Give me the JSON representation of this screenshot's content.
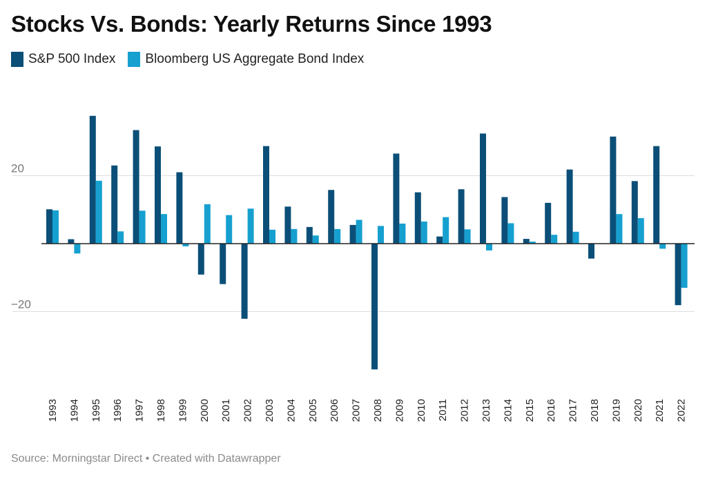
{
  "title": "Stocks Vs. Bonds: Yearly Returns Since 1993",
  "source": "Source: Morningstar Direct • Created with Datawrapper",
  "colors": {
    "stocks": "#0b4f78",
    "bonds": "#16a0d0",
    "grid": "#dddddd",
    "zero": "#222222",
    "tick": "#777777",
    "xtick": "#222222"
  },
  "chart_data": {
    "type": "bar",
    "title": "Stocks Vs. Bonds: Yearly Returns Since 1993",
    "xlabel": "",
    "ylabel": "",
    "ylim": [
      -37,
      40
    ],
    "yticks": [
      20,
      -20
    ],
    "ytick_labels": [
      "20",
      "−20"
    ],
    "grid": true,
    "legend_position": "top-left",
    "categories": [
      "1993",
      "1994",
      "1995",
      "1996",
      "1997",
      "1998",
      "1999",
      "2000",
      "2001",
      "2002",
      "2003",
      "2004",
      "2005",
      "2006",
      "2007",
      "2008",
      "2009",
      "2010",
      "2011",
      "2012",
      "2013",
      "2014",
      "2015",
      "2016",
      "2017",
      "2018",
      "2019",
      "2020",
      "2021",
      "2022"
    ],
    "series": [
      {
        "name": "S&P 500 Index",
        "values": [
          10.1,
          1.3,
          37.6,
          23.0,
          33.4,
          28.6,
          21.0,
          -9.1,
          -11.9,
          -22.1,
          28.7,
          10.9,
          4.9,
          15.8,
          5.5,
          -37.0,
          26.5,
          15.1,
          2.1,
          16.0,
          32.4,
          13.7,
          1.4,
          12.0,
          21.8,
          -4.4,
          31.5,
          18.4,
          28.7,
          -18.1
        ]
      },
      {
        "name": "Bloomberg US Aggregate Bond Index",
        "values": [
          9.8,
          -2.9,
          18.5,
          3.6,
          9.7,
          8.7,
          -0.8,
          11.6,
          8.4,
          10.3,
          4.1,
          4.3,
          2.4,
          4.3,
          7.0,
          5.2,
          5.9,
          6.5,
          7.8,
          4.2,
          -2.0,
          6.0,
          0.6,
          2.6,
          3.5,
          0.0,
          8.7,
          7.5,
          -1.5,
          -13.0
        ]
      }
    ]
  }
}
